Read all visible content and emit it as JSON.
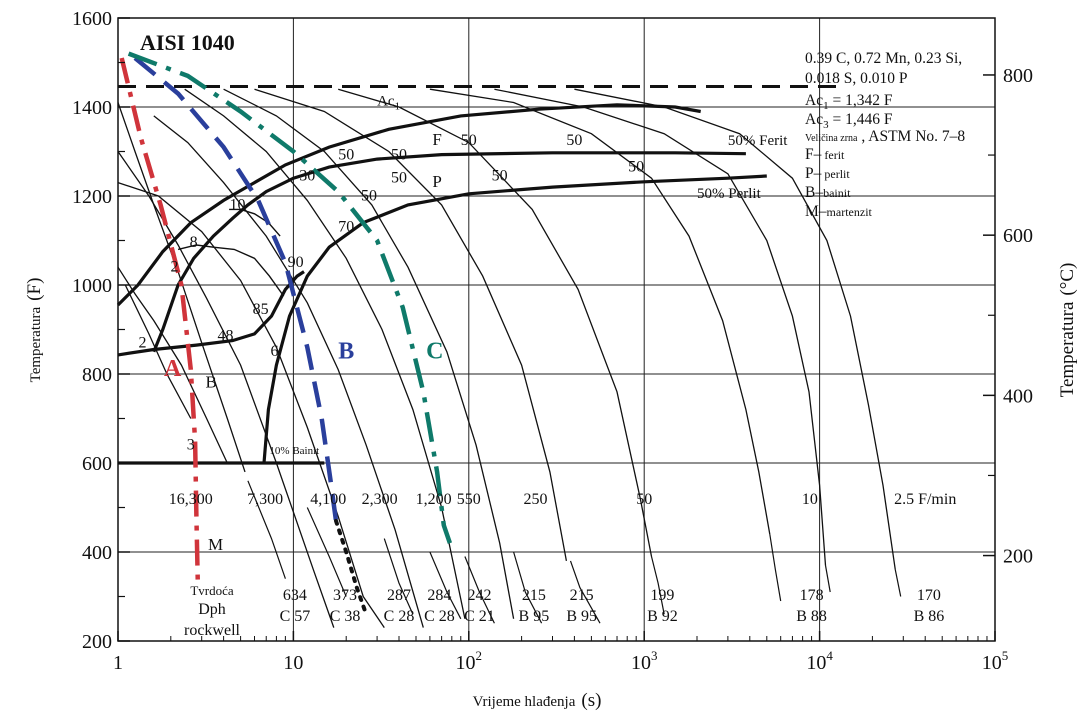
{
  "chart_data": {
    "type": "line",
    "title": "AISI 1040",
    "xlabel_main": "Vrijeme hlađenja",
    "xlabel_unit": "(s)",
    "ylabel_left_main": "Temperatura",
    "ylabel_left_unit": "(F)",
    "ylabel_right_main": "Temperatura",
    "ylabel_right_unit": "(°C)",
    "x_scale": "log",
    "xlim": [
      1,
      100000
    ],
    "ylim": [
      200,
      1600
    ],
    "grid": true,
    "x_ticks": [
      {
        "value": 1,
        "base": "1",
        "exp": ""
      },
      {
        "value": 10,
        "base": "10",
        "exp": ""
      },
      {
        "value": 100,
        "base": "10",
        "exp": "2"
      },
      {
        "value": 1000,
        "base": "10",
        "exp": "3"
      },
      {
        "value": 10000,
        "base": "10",
        "exp": "4"
      },
      {
        "value": 100000,
        "base": "10",
        "exp": "5"
      }
    ],
    "y_ticks": [
      200,
      400,
      600,
      800,
      1000,
      1200,
      1400,
      1600
    ],
    "y2_ticks": [
      {
        "label": "200",
        "f": 392
      },
      {
        "label": "400",
        "f": 752
      },
      {
        "label": "600",
        "f": 1112
      },
      {
        "label": "800",
        "f": 1472
      }
    ],
    "composition_lines": [
      "0.39 C, 0.72 Mn, 0.23 Si,",
      "0.018 S, 0.010 P"
    ],
    "ac1_info": {
      "prefix": "Ac",
      "sub": "1",
      "value": " = 1,342 F"
    },
    "ac3_info": {
      "prefix": "Ac",
      "sub": "3",
      "value": " = 1,446 F"
    },
    "grain_size": {
      "small": "Veličina zrna",
      "rest": " , ASTM No. 7–8"
    },
    "legend_entries": [
      {
        "key": "F–",
        "text": " ferit"
      },
      {
        "key": "P–",
        "text": " perlit"
      },
      {
        "key": "B–",
        "text": "bainit"
      },
      {
        "key": "M–",
        "text": "martenzit"
      }
    ],
    "ac3_temperature_f": 1446,
    "cooling_curves": [
      {
        "rate_label": "16,300",
        "hardness_dph": "",
        "hardness_rockwell": ""
      },
      {
        "rate_label": "7,300",
        "hardness_dph": "634",
        "hardness_rockwell": "C 57"
      },
      {
        "rate_label": "4,100",
        "hardness_dph": "373",
        "hardness_rockwell": "C 38"
      },
      {
        "rate_label": "2,300",
        "hardness_dph": "287",
        "hardness_rockwell": "C 28"
      },
      {
        "rate_label": "1,200",
        "hardness_dph": "284",
        "hardness_rockwell": "C 28"
      },
      {
        "rate_label": "550",
        "hardness_dph": "242",
        "hardness_rockwell": "C 21"
      },
      {
        "rate_label": "250",
        "hardness_dph": "215",
        "hardness_rockwell": "B 95"
      },
      {
        "rate_label": "",
        "hardness_dph": "215",
        "hardness_rockwell": "B 95"
      },
      {
        "rate_label": "50",
        "hardness_dph": "199",
        "hardness_rockwell": "B 92"
      },
      {
        "rate_label": "10",
        "hardness_dph": "178",
        "hardness_rockwell": "B 88"
      },
      {
        "rate_label": "2.5 F/min",
        "hardness_dph": "170",
        "hardness_rockwell": "B 86"
      }
    ],
    "hardness_title": "Tvrdoća",
    "hardness_dph_label": "Dph",
    "hardness_rockwell_label": "rockwell",
    "region_labels": {
      "ac1": "Ac",
      "ac1_sub": "1",
      "F": "F",
      "P": "P",
      "B": "B",
      "M": "M",
      "ferit50": "50% Ferit",
      "perlit50": "50% Perlit",
      "bainit10": "10% Bainit"
    },
    "path_labels": {
      "A": "A",
      "B": "B",
      "C": "C"
    },
    "path_colors": {
      "A": "#d0343b",
      "B": "#2a3f9c",
      "C": "#0f7a6a"
    },
    "percent_labels": [
      {
        "text": "50",
        "x": 20,
        "y": 1282
      },
      {
        "text": "50",
        "x": 40,
        "y": 1282
      },
      {
        "text": "50",
        "x": 100,
        "y": 1315
      },
      {
        "text": "50",
        "x": 400,
        "y": 1315
      },
      {
        "text": "50",
        "x": 40,
        "y": 1230
      },
      {
        "text": "50",
        "x": 150,
        "y": 1235
      },
      {
        "text": "50",
        "x": 900,
        "y": 1255
      },
      {
        "text": "50",
        "x": 27,
        "y": 1190
      },
      {
        "text": "30",
        "x": 12,
        "y": 1235
      },
      {
        "text": "10",
        "x": 4.8,
        "y": 1170
      },
      {
        "text": "8",
        "x": 2.7,
        "y": 1085
      },
      {
        "text": "2",
        "x": 2.1,
        "y": 1030
      },
      {
        "text": "70",
        "x": 20,
        "y": 1120
      },
      {
        "text": "90",
        "x": 10.3,
        "y": 1040
      },
      {
        "text": "85",
        "x": 6.5,
        "y": 935
      },
      {
        "text": "48",
        "x": 4.1,
        "y": 875
      },
      {
        "text": "6",
        "x": 7.8,
        "y": 840
      },
      {
        "text": "2",
        "x": 1.38,
        "y": 860
      },
      {
        "text": "3",
        "x": 2.6,
        "y": 630
      }
    ]
  }
}
